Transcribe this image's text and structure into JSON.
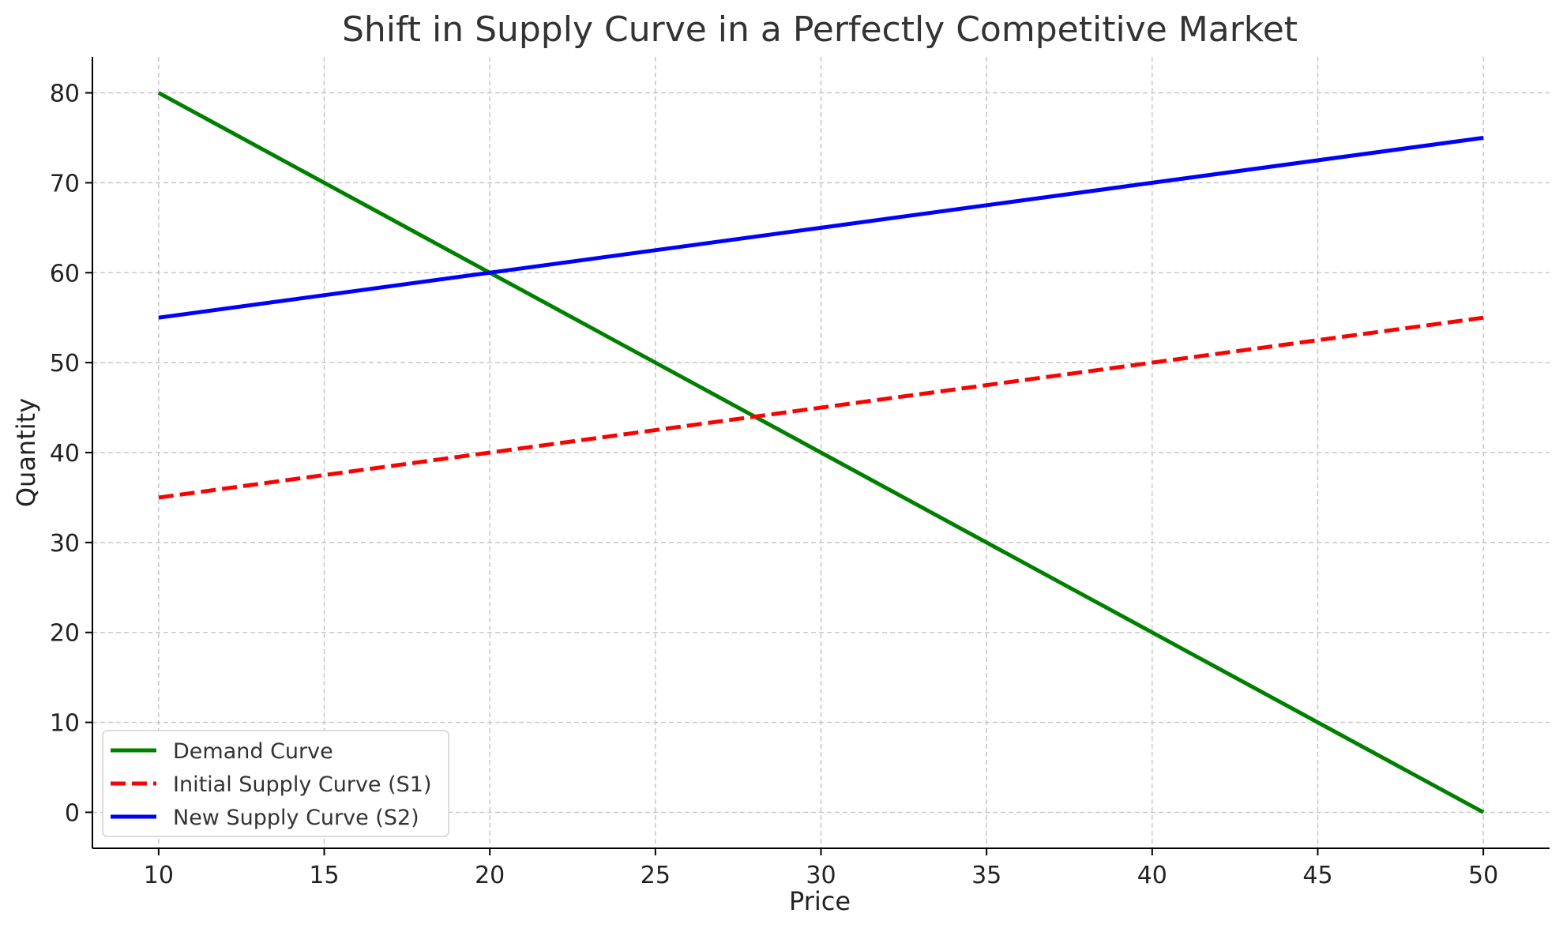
{
  "chart_data": {
    "type": "line",
    "title": "Shift in Supply Curve in a Perfectly Competitive Market",
    "xlabel": "Price",
    "ylabel": "Quantity",
    "x": [
      10,
      20,
      30,
      40,
      50
    ],
    "xlim": [
      8,
      52
    ],
    "ylim": [
      -4,
      84
    ],
    "xticks": [
      "10",
      "15",
      "20",
      "25",
      "30",
      "35",
      "40",
      "45",
      "50"
    ],
    "yticks": [
      "0",
      "10",
      "20",
      "30",
      "40",
      "50",
      "60",
      "70",
      "80"
    ],
    "grid": true,
    "legend_position": "bottom-left",
    "series": [
      {
        "name": "Demand Curve",
        "values": [
          80,
          60,
          40,
          20,
          0
        ],
        "color": "#008000",
        "style": "solid"
      },
      {
        "name": "Initial Supply Curve (S1)",
        "values": [
          35,
          40,
          45,
          50,
          55
        ],
        "color": "#ff0000",
        "style": "dashed"
      },
      {
        "name": "New Supply Curve (S2)",
        "values": [
          55,
          60,
          65,
          70,
          75
        ],
        "color": "#0000ff",
        "style": "solid"
      }
    ]
  }
}
